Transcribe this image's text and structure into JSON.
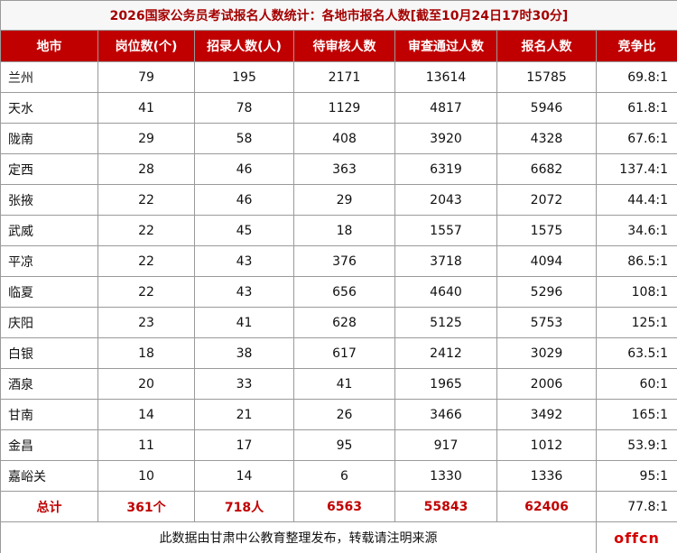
{
  "title": "2026国家公务员考试报名人数统计：各地市报名人数[截至10月24日17时30分]",
  "table": {
    "header": [
      "地市",
      "岗位数(个)",
      "招录人数(人)",
      "待审核人数",
      "审查通过人数",
      "报名人数",
      "竞争比"
    ],
    "rows": [
      [
        "兰州",
        79,
        195,
        2171,
        13614,
        15785,
        "69.8:1"
      ],
      [
        "天水",
        41,
        78,
        1129,
        4817,
        5946,
        "61.8:1"
      ],
      [
        "陇南",
        29,
        58,
        408,
        3920,
        4328,
        "67.6:1"
      ],
      [
        "定西",
        28,
        46,
        363,
        6319,
        6682,
        "137.4:1"
      ],
      [
        "张掖",
        22,
        46,
        29,
        2043,
        2072,
        "44.4:1"
      ],
      [
        "武威",
        22,
        45,
        18,
        1557,
        1575,
        "34.6:1"
      ],
      [
        "平凉",
        22,
        43,
        376,
        3718,
        4094,
        "86.5:1"
      ],
      [
        "临夏",
        22,
        43,
        656,
        4640,
        5296,
        "108:1"
      ],
      [
        "庆阳",
        23,
        41,
        628,
        5125,
        5753,
        "125:1"
      ],
      [
        "白银",
        18,
        38,
        617,
        2412,
        3029,
        "63.5:1"
      ],
      [
        "酒泉",
        20,
        33,
        41,
        1965,
        2006,
        "60:1"
      ],
      [
        "甘南",
        14,
        21,
        26,
        3466,
        3492,
        "165:1"
      ],
      [
        "金昌",
        11,
        17,
        95,
        917,
        1012,
        "53.9:1"
      ],
      [
        "嘉峪关",
        10,
        14,
        6,
        1330,
        1336,
        "95:1"
      ]
    ],
    "total": [
      "总计",
      "361个",
      "718人",
      6563,
      55843,
      62406,
      "77.8:1"
    ]
  },
  "footer": {
    "note": "此数据由甘肃中公教育整理发布，转载请注明来源",
    "logo": "offcn"
  }
}
